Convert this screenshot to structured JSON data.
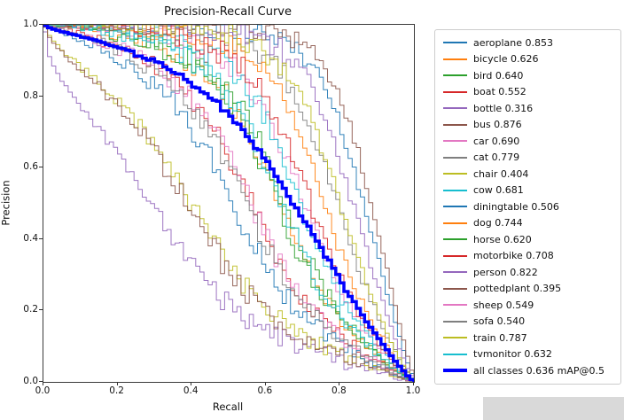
{
  "title": "Precision-Recall Curve",
  "chart_data": {
    "type": "line",
    "title": "Precision-Recall Curve",
    "xlabel": "Recall",
    "ylabel": "Precision",
    "xlim": [
      0.0,
      1.0
    ],
    "ylim": [
      0.0,
      1.0
    ],
    "x_ticks": [
      "0.0",
      "0.2",
      "0.4",
      "0.6",
      "0.8",
      "1.0"
    ],
    "y_ticks": [
      "0.0",
      "0.2",
      "0.4",
      "0.6",
      "0.8",
      "1.0"
    ],
    "grid": false,
    "legend_position": "right",
    "series": [
      {
        "name": "aeroplane",
        "ap": 0.853,
        "label": "aeroplane 0.853",
        "color": "#1f77b4",
        "linewidth": 1
      },
      {
        "name": "bicycle",
        "ap": 0.626,
        "label": "bicycle 0.626",
        "color": "#ff7f0e",
        "linewidth": 1
      },
      {
        "name": "bird",
        "ap": 0.64,
        "label": "bird 0.640",
        "color": "#2ca02c",
        "linewidth": 1
      },
      {
        "name": "boat",
        "ap": 0.552,
        "label": "boat 0.552",
        "color": "#d62728",
        "linewidth": 1
      },
      {
        "name": "bottle",
        "ap": 0.316,
        "label": "bottle 0.316",
        "color": "#9467bd",
        "linewidth": 1
      },
      {
        "name": "bus",
        "ap": 0.876,
        "label": "bus 0.876",
        "color": "#8c564b",
        "linewidth": 1
      },
      {
        "name": "car",
        "ap": 0.69,
        "label": "car 0.690",
        "color": "#e377c2",
        "linewidth": 1
      },
      {
        "name": "cat",
        "ap": 0.779,
        "label": "cat 0.779",
        "color": "#7f7f7f",
        "linewidth": 1
      },
      {
        "name": "chair",
        "ap": 0.404,
        "label": "chair 0.404",
        "color": "#bcbd22",
        "linewidth": 1
      },
      {
        "name": "cow",
        "ap": 0.681,
        "label": "cow 0.681",
        "color": "#17becf",
        "linewidth": 1
      },
      {
        "name": "diningtable",
        "ap": 0.506,
        "label": "diningtable 0.506",
        "color": "#1f77b4",
        "linewidth": 1
      },
      {
        "name": "dog",
        "ap": 0.744,
        "label": "dog 0.744",
        "color": "#ff7f0e",
        "linewidth": 1
      },
      {
        "name": "horse",
        "ap": 0.62,
        "label": "horse 0.620",
        "color": "#2ca02c",
        "linewidth": 1
      },
      {
        "name": "motorbike",
        "ap": 0.708,
        "label": "motorbike 0.708",
        "color": "#d62728",
        "linewidth": 1
      },
      {
        "name": "person",
        "ap": 0.822,
        "label": "person 0.822",
        "color": "#9467bd",
        "linewidth": 1
      },
      {
        "name": "pottedplant",
        "ap": 0.395,
        "label": "pottedplant 0.395",
        "color": "#8c564b",
        "linewidth": 1
      },
      {
        "name": "sheep",
        "ap": 0.549,
        "label": "sheep 0.549",
        "color": "#e377c2",
        "linewidth": 1
      },
      {
        "name": "sofa",
        "ap": 0.54,
        "label": "sofa 0.540",
        "color": "#7f7f7f",
        "linewidth": 1
      },
      {
        "name": "train",
        "ap": 0.787,
        "label": "train 0.787",
        "color": "#bcbd22",
        "linewidth": 1
      },
      {
        "name": "tvmonitor",
        "ap": 0.632,
        "label": "tvmonitor 0.632",
        "color": "#17becf",
        "linewidth": 1
      },
      {
        "name": "all classes",
        "ap": 0.636,
        "label": "all classes 0.636 mAP@0.5",
        "color": "#0000ff",
        "linewidth": 3.5
      }
    ]
  }
}
